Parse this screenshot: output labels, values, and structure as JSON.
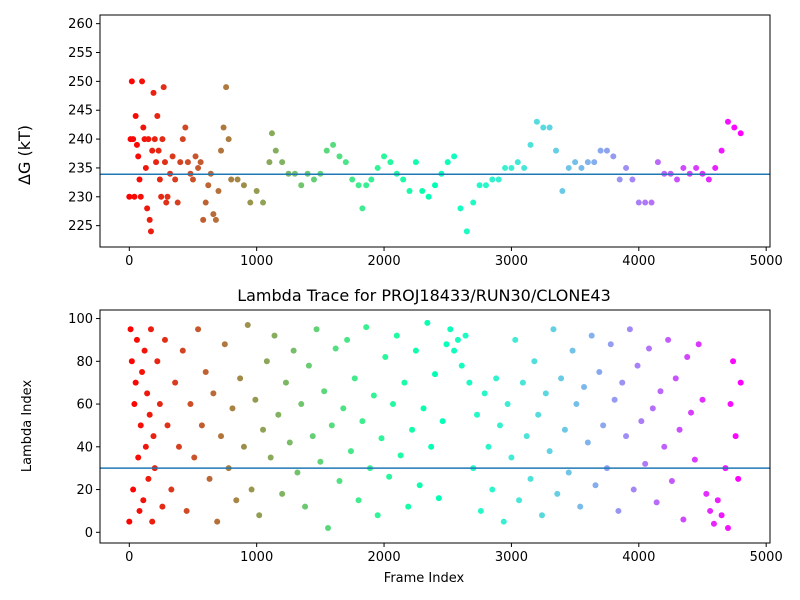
{
  "chart_data": [
    {
      "type": "scatter",
      "title": "",
      "xlabel": "",
      "ylabel": "ΔG (kT)",
      "xlim": [
        -230,
        5030
      ],
      "ylim": [
        221.3,
        261.5
      ],
      "xticks": [
        0,
        1000,
        2000,
        3000,
        4000,
        5000
      ],
      "yticks": [
        225,
        230,
        235,
        240,
        245,
        250,
        255,
        260
      ],
      "hline": 233.9,
      "hline_color": "#1f77b4",
      "colormap": "rainbow",
      "colorscale_x_range": [
        0,
        4800
      ],
      "points": [
        [
          0,
          230
        ],
        [
          10,
          240
        ],
        [
          20,
          250
        ],
        [
          30,
          240
        ],
        [
          40,
          230
        ],
        [
          50,
          244
        ],
        [
          60,
          239
        ],
        [
          70,
          237
        ],
        [
          80,
          233
        ],
        [
          90,
          230
        ],
        [
          100,
          250
        ],
        [
          110,
          242
        ],
        [
          120,
          240
        ],
        [
          130,
          235
        ],
        [
          140,
          228
        ],
        [
          150,
          240
        ],
        [
          160,
          226
        ],
        [
          170,
          224
        ],
        [
          180,
          238
        ],
        [
          190,
          248
        ],
        [
          200,
          240
        ],
        [
          210,
          236
        ],
        [
          220,
          244
        ],
        [
          230,
          238
        ],
        [
          240,
          233
        ],
        [
          250,
          230
        ],
        [
          260,
          240
        ],
        [
          270,
          249
        ],
        [
          280,
          236
        ],
        [
          290,
          229
        ],
        [
          300,
          230
        ],
        [
          320,
          234
        ],
        [
          340,
          237
        ],
        [
          360,
          233
        ],
        [
          380,
          229
        ],
        [
          400,
          236
        ],
        [
          420,
          240
        ],
        [
          440,
          242
        ],
        [
          460,
          236
        ],
        [
          480,
          234
        ],
        [
          500,
          233
        ],
        [
          520,
          237
        ],
        [
          540,
          235
        ],
        [
          560,
          236
        ],
        [
          580,
          226
        ],
        [
          600,
          229
        ],
        [
          620,
          232
        ],
        [
          640,
          234
        ],
        [
          660,
          227
        ],
        [
          680,
          226
        ],
        [
          700,
          231
        ],
        [
          720,
          238
        ],
        [
          740,
          242
        ],
        [
          760,
          249
        ],
        [
          780,
          240
        ],
        [
          800,
          233
        ],
        [
          850,
          233
        ],
        [
          900,
          232
        ],
        [
          950,
          229
        ],
        [
          1000,
          231
        ],
        [
          1050,
          229
        ],
        [
          1100,
          236
        ],
        [
          1120,
          241
        ],
        [
          1150,
          238
        ],
        [
          1200,
          236
        ],
        [
          1250,
          234
        ],
        [
          1300,
          234
        ],
        [
          1350,
          232
        ],
        [
          1400,
          234
        ],
        [
          1450,
          233
        ],
        [
          1500,
          234
        ],
        [
          1550,
          238
        ],
        [
          1600,
          239
        ],
        [
          1650,
          237
        ],
        [
          1700,
          236
        ],
        [
          1750,
          233
        ],
        [
          1800,
          232
        ],
        [
          1830,
          228
        ],
        [
          1860,
          232
        ],
        [
          1900,
          233
        ],
        [
          1950,
          235
        ],
        [
          2000,
          237
        ],
        [
          2050,
          236
        ],
        [
          2100,
          234
        ],
        [
          2150,
          233
        ],
        [
          2200,
          231
        ],
        [
          2250,
          236
        ],
        [
          2300,
          231
        ],
        [
          2350,
          230
        ],
        [
          2400,
          232
        ],
        [
          2450,
          234
        ],
        [
          2500,
          236
        ],
        [
          2550,
          237
        ],
        [
          2600,
          228
        ],
        [
          2650,
          224
        ],
        [
          2700,
          229
        ],
        [
          2750,
          232
        ],
        [
          2800,
          232
        ],
        [
          2850,
          233
        ],
        [
          2900,
          233
        ],
        [
          2950,
          235
        ],
        [
          3000,
          235
        ],
        [
          3050,
          236
        ],
        [
          3100,
          235
        ],
        [
          3150,
          239
        ],
        [
          3200,
          243
        ],
        [
          3250,
          242
        ],
        [
          3300,
          242
        ],
        [
          3350,
          238
        ],
        [
          3400,
          231
        ],
        [
          3450,
          235
        ],
        [
          3500,
          236
        ],
        [
          3550,
          235
        ],
        [
          3600,
          236
        ],
        [
          3650,
          236
        ],
        [
          3700,
          238
        ],
        [
          3750,
          238
        ],
        [
          3800,
          237
        ],
        [
          3850,
          233
        ],
        [
          3900,
          235
        ],
        [
          3950,
          233
        ],
        [
          4000,
          229
        ],
        [
          4050,
          229
        ],
        [
          4100,
          229
        ],
        [
          4150,
          236
        ],
        [
          4200,
          234
        ],
        [
          4250,
          234
        ],
        [
          4300,
          233
        ],
        [
          4350,
          235
        ],
        [
          4400,
          234
        ],
        [
          4450,
          235
        ],
        [
          4500,
          234
        ],
        [
          4550,
          233
        ],
        [
          4600,
          235
        ],
        [
          4650,
          238
        ],
        [
          4700,
          243
        ],
        [
          4750,
          242
        ],
        [
          4800,
          241
        ]
      ]
    },
    {
      "type": "scatter",
      "title": "Lambda Trace for PROJ18433/RUN30/CLONE43",
      "xlabel": "Frame Index",
      "ylabel": "Lambda Index",
      "xlim": [
        -230,
        5030
      ],
      "ylim": [
        -5,
        104
      ],
      "xticks": [
        0,
        1000,
        2000,
        3000,
        4000,
        5000
      ],
      "yticks": [
        0,
        20,
        40,
        60,
        80,
        100
      ],
      "hline": 30,
      "hline_color": "#1f77b4",
      "colormap": "rainbow",
      "colorscale_x_range": [
        0,
        4800
      ],
      "points": [
        [
          0,
          5
        ],
        [
          10,
          95
        ],
        [
          20,
          80
        ],
        [
          30,
          20
        ],
        [
          40,
          60
        ],
        [
          50,
          70
        ],
        [
          60,
          90
        ],
        [
          70,
          35
        ],
        [
          80,
          10
        ],
        [
          90,
          50
        ],
        [
          100,
          75
        ],
        [
          110,
          15
        ],
        [
          120,
          85
        ],
        [
          130,
          40
        ],
        [
          140,
          65
        ],
        [
          150,
          25
        ],
        [
          160,
          55
        ],
        [
          170,
          95
        ],
        [
          180,
          5
        ],
        [
          190,
          45
        ],
        [
          200,
          30
        ],
        [
          220,
          80
        ],
        [
          240,
          60
        ],
        [
          260,
          12
        ],
        [
          280,
          90
        ],
        [
          300,
          50
        ],
        [
          330,
          20
        ],
        [
          360,
          70
        ],
        [
          390,
          40
        ],
        [
          420,
          85
        ],
        [
          450,
          10
        ],
        [
          480,
          60
        ],
        [
          510,
          35
        ],
        [
          540,
          95
        ],
        [
          570,
          50
        ],
        [
          600,
          75
        ],
        [
          630,
          25
        ],
        [
          660,
          65
        ],
        [
          690,
          5
        ],
        [
          720,
          45
        ],
        [
          750,
          88
        ],
        [
          780,
          30
        ],
        [
          810,
          58
        ],
        [
          840,
          15
        ],
        [
          870,
          72
        ],
        [
          900,
          40
        ],
        [
          930,
          97
        ],
        [
          960,
          20
        ],
        [
          990,
          62
        ],
        [
          1020,
          8
        ],
        [
          1050,
          48
        ],
        [
          1080,
          80
        ],
        [
          1110,
          35
        ],
        [
          1140,
          92
        ],
        [
          1170,
          55
        ],
        [
          1200,
          18
        ],
        [
          1230,
          70
        ],
        [
          1260,
          42
        ],
        [
          1290,
          85
        ],
        [
          1320,
          28
        ],
        [
          1350,
          60
        ],
        [
          1380,
          12
        ],
        [
          1410,
          78
        ],
        [
          1440,
          45
        ],
        [
          1470,
          95
        ],
        [
          1500,
          33
        ],
        [
          1530,
          66
        ],
        [
          1560,
          2
        ],
        [
          1590,
          50
        ],
        [
          1620,
          86
        ],
        [
          1650,
          24
        ],
        [
          1680,
          58
        ],
        [
          1710,
          90
        ],
        [
          1740,
          38
        ],
        [
          1770,
          72
        ],
        [
          1800,
          15
        ],
        [
          1830,
          52
        ],
        [
          1860,
          96
        ],
        [
          1890,
          30
        ],
        [
          1920,
          64
        ],
        [
          1950,
          8
        ],
        [
          1980,
          44
        ],
        [
          2010,
          82
        ],
        [
          2040,
          26
        ],
        [
          2070,
          60
        ],
        [
          2100,
          92
        ],
        [
          2130,
          36
        ],
        [
          2160,
          70
        ],
        [
          2190,
          12
        ],
        [
          2220,
          48
        ],
        [
          2250,
          85
        ],
        [
          2280,
          22
        ],
        [
          2310,
          58
        ],
        [
          2340,
          98
        ],
        [
          2370,
          40
        ],
        [
          2400,
          74
        ],
        [
          2430,
          16
        ],
        [
          2460,
          52
        ],
        [
          2490,
          88
        ],
        [
          2520,
          95
        ],
        [
          2550,
          85
        ],
        [
          2580,
          90
        ],
        [
          2610,
          78
        ],
        [
          2640,
          92
        ],
        [
          2670,
          70
        ],
        [
          2700,
          30
        ],
        [
          2730,
          55
        ],
        [
          2760,
          10
        ],
        [
          2790,
          65
        ],
        [
          2820,
          40
        ],
        [
          2850,
          20
        ],
        [
          2880,
          72
        ],
        [
          2910,
          50
        ],
        [
          2940,
          5
        ],
        [
          2970,
          60
        ],
        [
          3000,
          35
        ],
        [
          3030,
          90
        ],
        [
          3060,
          15
        ],
        [
          3090,
          70
        ],
        [
          3120,
          45
        ],
        [
          3150,
          25
        ],
        [
          3180,
          80
        ],
        [
          3210,
          55
        ],
        [
          3240,
          8
        ],
        [
          3270,
          65
        ],
        [
          3300,
          38
        ],
        [
          3330,
          95
        ],
        [
          3360,
          18
        ],
        [
          3390,
          72
        ],
        [
          3420,
          48
        ],
        [
          3450,
          28
        ],
        [
          3480,
          85
        ],
        [
          3510,
          60
        ],
        [
          3540,
          12
        ],
        [
          3570,
          68
        ],
        [
          3600,
          42
        ],
        [
          3630,
          92
        ],
        [
          3660,
          22
        ],
        [
          3690,
          75
        ],
        [
          3720,
          50
        ],
        [
          3750,
          30
        ],
        [
          3780,
          88
        ],
        [
          3810,
          62
        ],
        [
          3840,
          10
        ],
        [
          3870,
          70
        ],
        [
          3900,
          45
        ],
        [
          3930,
          95
        ],
        [
          3960,
          20
        ],
        [
          3990,
          78
        ],
        [
          4020,
          52
        ],
        [
          4050,
          32
        ],
        [
          4080,
          86
        ],
        [
          4110,
          58
        ],
        [
          4140,
          14
        ],
        [
          4170,
          66
        ],
        [
          4200,
          40
        ],
        [
          4230,
          90
        ],
        [
          4260,
          24
        ],
        [
          4290,
          72
        ],
        [
          4320,
          48
        ],
        [
          4350,
          6
        ],
        [
          4380,
          82
        ],
        [
          4410,
          56
        ],
        [
          4440,
          34
        ],
        [
          4470,
          88
        ],
        [
          4500,
          62
        ],
        [
          4530,
          18
        ],
        [
          4560,
          10
        ],
        [
          4590,
          4
        ],
        [
          4620,
          15
        ],
        [
          4650,
          8
        ],
        [
          4680,
          30
        ],
        [
          4700,
          2
        ],
        [
          4720,
          60
        ],
        [
          4740,
          80
        ],
        [
          4760,
          45
        ],
        [
          4780,
          25
        ],
        [
          4800,
          70
        ]
      ]
    }
  ]
}
